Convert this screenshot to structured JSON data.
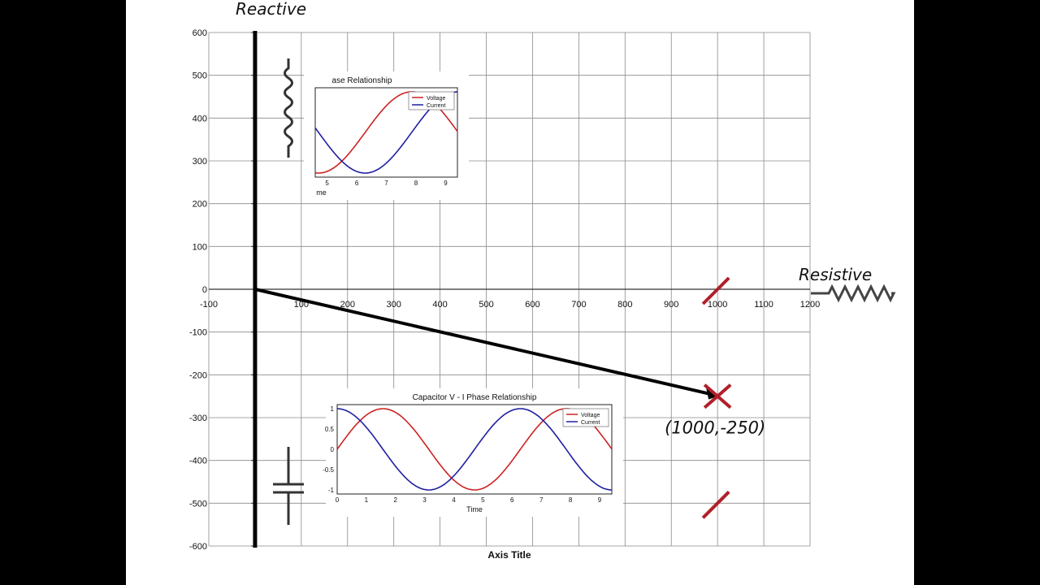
{
  "chart_data": [
    {
      "type": "scatter",
      "title": "",
      "xlabel": "Axis Title",
      "ylabel": "",
      "xlim": [
        -100,
        1200
      ],
      "ylim": [
        -600,
        600
      ],
      "x_ticks": [
        -100,
        100,
        200,
        300,
        400,
        500,
        600,
        700,
        800,
        900,
        1000,
        1100,
        1200
      ],
      "y_ticks": [
        600,
        500,
        400,
        300,
        200,
        100,
        0,
        -100,
        -200,
        -300,
        -400,
        -500,
        -600
      ],
      "grid": true,
      "vector": {
        "from": [
          0,
          0
        ],
        "to": [
          1000,
          -250
        ]
      },
      "point": {
        "x": 1000,
        "y": -250,
        "label": "(1000,-250)"
      },
      "tick_marks": [
        {
          "x": 1000,
          "y": 0
        },
        {
          "x": 1000,
          "y": -500
        }
      ],
      "annotations": {
        "reactive": "Reactive",
        "resistive": "Resistive"
      }
    },
    {
      "type": "line",
      "title": "ase Relationship",
      "xlabel": "me",
      "x_ticks": [
        5,
        6,
        7,
        8,
        9
      ],
      "xlim": [
        4.6,
        9.4
      ],
      "ylim": [
        -1.1,
        1.1
      ],
      "series": [
        {
          "name": "Voltage",
          "fn": "sin",
          "color": "#cc2222"
        },
        {
          "name": "Current",
          "fn": "sin_shift",
          "color": "#1f1fa0"
        }
      ]
    },
    {
      "type": "line",
      "title": "Capacitor V - I Phase Relationship",
      "xlabel": "Time",
      "x_ticks": [
        0,
        1,
        2,
        3,
        4,
        5,
        6,
        7,
        8,
        9
      ],
      "y_ticks": [
        1,
        0.5,
        0,
        -0.5,
        -1
      ],
      "xlim": [
        0,
        9.42
      ],
      "ylim": [
        -1.1,
        1.1
      ],
      "series": [
        {
          "name": "Voltage",
          "fn": "sin",
          "color": "#cc2222"
        },
        {
          "name": "Current",
          "fn": "cos",
          "color": "#1f1fa0"
        }
      ]
    }
  ],
  "colors": {
    "vector": "#000000",
    "marker": "#b0202a",
    "inductor_voltage": "#cc2222",
    "inductor_current": "#1f1fa0"
  }
}
